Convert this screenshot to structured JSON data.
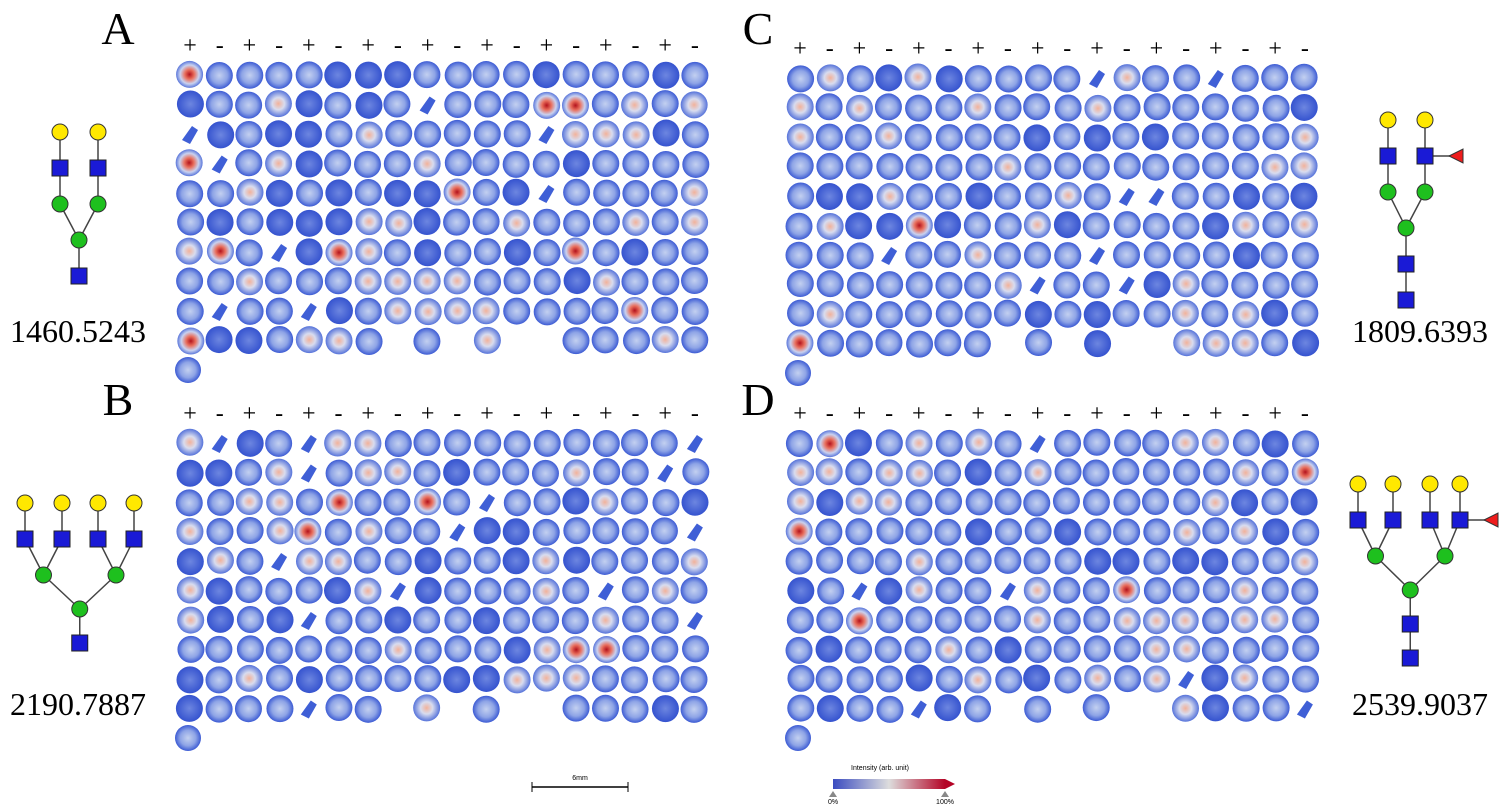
{
  "panels": [
    {
      "letter": "A",
      "mass": "1460.5243",
      "signs": [
        "+",
        "-",
        "+",
        "-",
        "+",
        "-",
        "+",
        "-",
        "+",
        "-",
        "+",
        "-",
        "+",
        "-",
        "+",
        "-",
        "+",
        "-"
      ]
    },
    {
      "letter": "B",
      "mass": "2190.7887",
      "signs": [
        "+",
        "-",
        "+",
        "-",
        "+",
        "-",
        "+",
        "-",
        "+",
        "-",
        "+",
        "-",
        "+",
        "-",
        "+",
        "-",
        "+",
        "-"
      ]
    },
    {
      "letter": "C",
      "mass": "1809.6393",
      "signs": [
        "+",
        "-",
        "+",
        "-",
        "+",
        "-",
        "+",
        "-",
        "+",
        "-",
        "+",
        "-",
        "+",
        "-",
        "+",
        "-",
        "+",
        "-"
      ]
    },
    {
      "letter": "D",
      "mass": "2539.9037",
      "signs": [
        "+",
        "-",
        "+",
        "-",
        "+",
        "-",
        "+",
        "-",
        "+",
        "-",
        "+",
        "-",
        "+",
        "-",
        "+",
        "-",
        "+",
        "-"
      ]
    }
  ],
  "scale_bar": {
    "label": "6mm"
  },
  "colorbar": {
    "title": "Intensity (arb. unit)",
    "min_label": "0%",
    "max_label": "100%"
  }
}
